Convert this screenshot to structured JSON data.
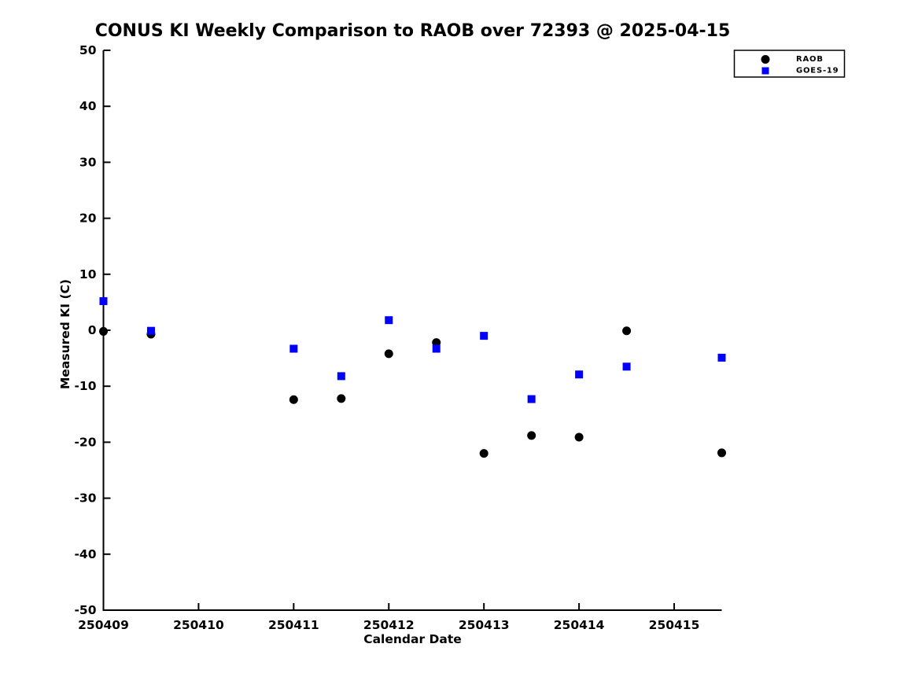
{
  "title": "CONUS KI Weekly Comparison to RAOB over 72393 @ 2025-04-15",
  "chart_data": {
    "type": "scatter",
    "title": "CONUS KI Weekly Comparison to RAOB over 72393 @ 2025-04-15",
    "xlabel": "Calendar Date",
    "ylabel": "Measured KI (C)",
    "xlim": [
      250409,
      250415.5
    ],
    "ylim": [
      -50,
      50
    ],
    "xticks": [
      250409,
      250410,
      250411,
      250412,
      250413,
      250414,
      250415
    ],
    "yticks": [
      -50,
      -40,
      -30,
      -20,
      -10,
      0,
      10,
      20,
      30,
      40,
      50
    ],
    "grid": false,
    "legend": {
      "position": "top-right",
      "entries": [
        {
          "label": "RAOB",
          "marker": "circle",
          "color": "#000000"
        },
        {
          "label": "GOES-19",
          "marker": "square",
          "color": "#0000ff"
        }
      ]
    },
    "series": [
      {
        "name": "RAOB",
        "marker": "circle",
        "color": "#000000",
        "points": [
          [
            250409.0,
            -0.2
          ],
          [
            250409.5,
            -0.7
          ],
          [
            250411.0,
            -12.4
          ],
          [
            250411.5,
            -12.2
          ],
          [
            250412.0,
            -4.2
          ],
          [
            250412.5,
            -2.2
          ],
          [
            250413.0,
            -22.0
          ],
          [
            250413.5,
            -18.8
          ],
          [
            250414.0,
            -19.1
          ],
          [
            250414.5,
            -0.1
          ],
          [
            250415.5,
            -21.9
          ]
        ]
      },
      {
        "name": "GOES-19",
        "marker": "square",
        "color": "#0000ff",
        "points": [
          [
            250409.0,
            5.2
          ],
          [
            250409.5,
            -0.1
          ],
          [
            250411.0,
            -3.3
          ],
          [
            250411.5,
            -8.2
          ],
          [
            250412.0,
            1.8
          ],
          [
            250412.5,
            -3.3
          ],
          [
            250413.0,
            -1.0
          ],
          [
            250413.5,
            -12.3
          ],
          [
            250414.0,
            -7.9
          ],
          [
            250414.5,
            -6.5
          ],
          [
            250415.5,
            -4.9
          ]
        ]
      }
    ],
    "axis_color": "#000000"
  }
}
